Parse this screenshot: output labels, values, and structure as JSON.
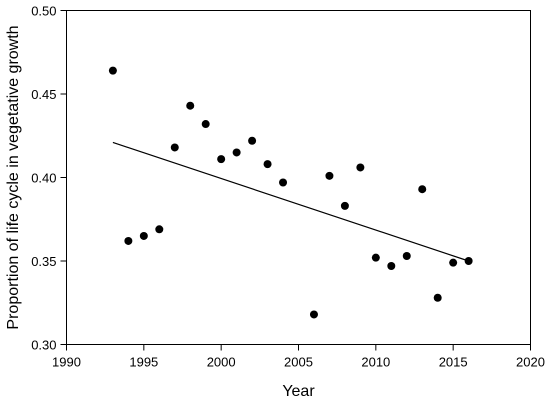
{
  "chart_data": {
    "type": "scatter",
    "title": "",
    "xlabel": "Year",
    "ylabel": "Proportion of life cycle in vegetative growth",
    "xlim": [
      1990,
      2020
    ],
    "ylim": [
      0.3,
      0.5
    ],
    "xticks": [
      1990,
      1995,
      2000,
      2005,
      2010,
      2015,
      2020
    ],
    "xtick_labels": [
      "1990",
      "1995",
      "2000",
      "2005",
      "2010",
      "2015",
      "2020"
    ],
    "yticks": [
      0.3,
      0.35,
      0.4,
      0.45,
      0.5
    ],
    "ytick_labels": [
      "0.30",
      "0.35",
      "0.40",
      "0.45",
      "0.50"
    ],
    "grid": false,
    "points": [
      {
        "x": 1993,
        "y": 0.464
      },
      {
        "x": 1994,
        "y": 0.362
      },
      {
        "x": 1995,
        "y": 0.365
      },
      {
        "x": 1996,
        "y": 0.369
      },
      {
        "x": 1997,
        "y": 0.418
      },
      {
        "x": 1998,
        "y": 0.443
      },
      {
        "x": 1999,
        "y": 0.432
      },
      {
        "x": 2000,
        "y": 0.411
      },
      {
        "x": 2001,
        "y": 0.415
      },
      {
        "x": 2002,
        "y": 0.422
      },
      {
        "x": 2003,
        "y": 0.408
      },
      {
        "x": 2004,
        "y": 0.397
      },
      {
        "x": 2006,
        "y": 0.318
      },
      {
        "x": 2007,
        "y": 0.401
      },
      {
        "x": 2008,
        "y": 0.383
      },
      {
        "x": 2009,
        "y": 0.406
      },
      {
        "x": 2010,
        "y": 0.352
      },
      {
        "x": 2011,
        "y": 0.347
      },
      {
        "x": 2012,
        "y": 0.353
      },
      {
        "x": 2013,
        "y": 0.393
      },
      {
        "x": 2014,
        "y": 0.328
      },
      {
        "x": 2015,
        "y": 0.349
      },
      {
        "x": 2016,
        "y": 0.35
      }
    ],
    "trendline": {
      "x": [
        1993,
        2016
      ],
      "y": [
        0.421,
        0.35
      ]
    },
    "colors": {
      "points": "#000000",
      "line": "#000000",
      "axes": "#000000"
    }
  }
}
